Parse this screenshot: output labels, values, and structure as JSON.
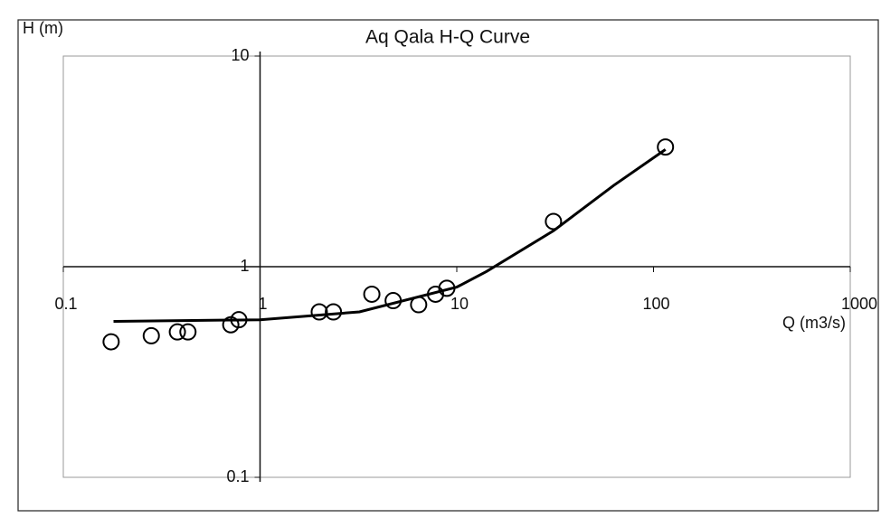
{
  "chart_data": {
    "type": "scatter",
    "title": "Aq Qala H-Q Curve",
    "x_label": "Q (m3/s)",
    "y_label": "H (m)",
    "xlog": true,
    "ylog": true,
    "xlim": [
      0.1,
      1000
    ],
    "ylim": [
      0.1,
      10
    ],
    "xticks": [
      0.1,
      1,
      10,
      100,
      1000
    ],
    "yticks": [
      0.1,
      1,
      10
    ],
    "y_axis_at_x": 1,
    "x_axis_at_y": 1,
    "series": [
      {
        "mode": "markers",
        "color": "#000000",
        "x": [
          0.175,
          0.28,
          0.38,
          0.43,
          0.71,
          0.78,
          2.0,
          2.36,
          3.7,
          4.75,
          6.4,
          7.8,
          8.9,
          31,
          115
        ],
        "values": [
          0.44,
          0.47,
          0.49,
          0.49,
          0.53,
          0.56,
          0.61,
          0.61,
          0.74,
          0.69,
          0.66,
          0.74,
          0.79,
          1.64,
          3.7
        ]
      },
      {
        "mode": "line",
        "color": "#000000",
        "x": [
          0.18,
          1,
          3.2,
          10,
          14.2,
          31,
          62.7,
          115
        ],
        "values": [
          0.55,
          0.56,
          0.61,
          0.8,
          0.95,
          1.48,
          2.43,
          3.6
        ]
      }
    ]
  }
}
